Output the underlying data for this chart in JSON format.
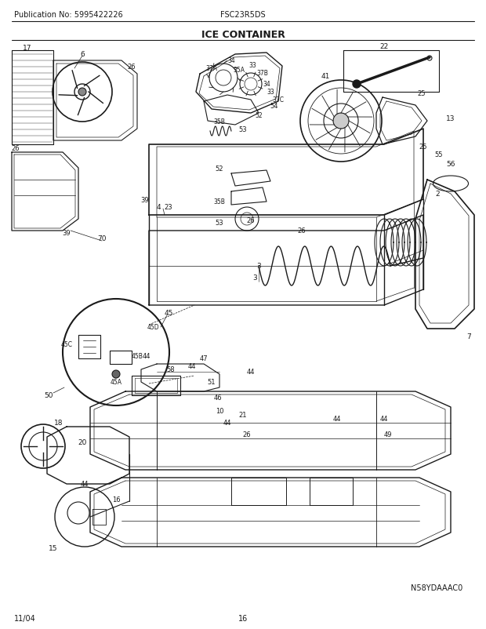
{
  "pub_no": "Publication No: 5995422226",
  "model": "FSC23R5DS",
  "title": "ICE CONTAINER",
  "date": "11/04",
  "page": "16",
  "diagram_code": "N58YDAAAC0",
  "bg_color": "#ffffff",
  "line_color": "#1a1a1a",
  "title_fontsize": 9,
  "header_fontsize": 7,
  "footer_fontsize": 7
}
